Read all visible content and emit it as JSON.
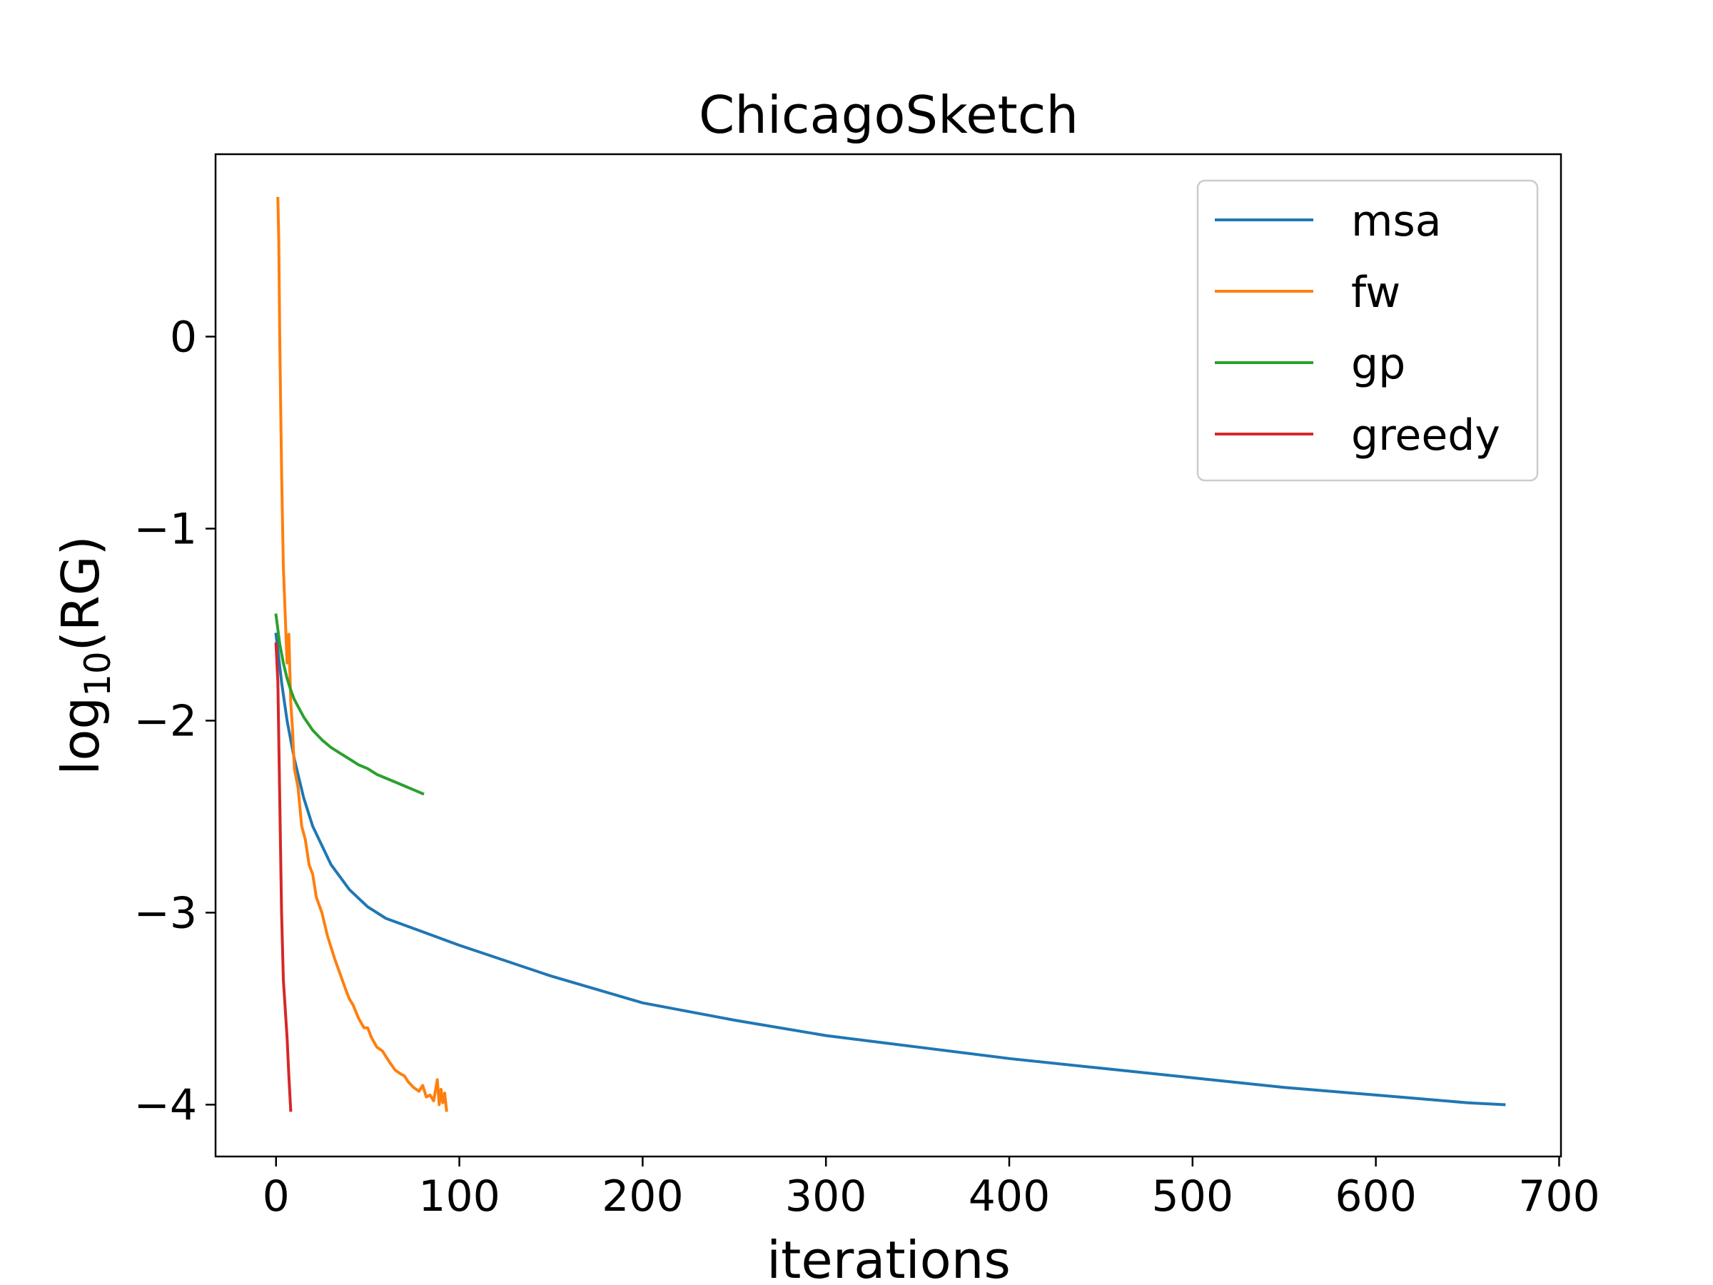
{
  "chart_data": {
    "type": "line",
    "title": "ChicagoSketch",
    "xlabel": "iterations",
    "ylabel": "log",
    "ylabel_sub": "10",
    "ylabel_suffix": "(RG)",
    "xlim": [
      -33,
      701
    ],
    "ylim": [
      -4.27,
      0.95
    ],
    "xticks": [
      0,
      100,
      200,
      300,
      400,
      500,
      600,
      700
    ],
    "xtick_labels": [
      "0",
      "100",
      "200",
      "300",
      "400",
      "500",
      "600",
      "700"
    ],
    "yticks": [
      0,
      -1,
      -2,
      -3,
      -4
    ],
    "ytick_labels": [
      "0",
      "−1",
      "−2",
      "−3",
      "−4"
    ],
    "grid": false,
    "legend_position": "top-right",
    "series": [
      {
        "name": "msa",
        "color": "#1f77b4",
        "x": [
          0,
          3,
          6,
          10,
          15,
          20,
          30,
          40,
          50,
          60,
          80,
          100,
          150,
          200,
          250,
          300,
          350,
          400,
          450,
          500,
          550,
          600,
          650,
          670
        ],
        "y": [
          -1.55,
          -1.8,
          -2.0,
          -2.2,
          -2.4,
          -2.55,
          -2.75,
          -2.88,
          -2.97,
          -3.03,
          -3.1,
          -3.17,
          -3.33,
          -3.47,
          -3.56,
          -3.64,
          -3.7,
          -3.76,
          -3.81,
          -3.86,
          -3.91,
          -3.95,
          -3.99,
          -4.0
        ]
      },
      {
        "name": "fw",
        "color": "#ff7f0e",
        "x": [
          1,
          1.5,
          2,
          3,
          4,
          5,
          6,
          7,
          8,
          9,
          10,
          12,
          14,
          16,
          18,
          20,
          22,
          25,
          28,
          30,
          32,
          35,
          38,
          40,
          42,
          45,
          48,
          50,
          52,
          55,
          58,
          60,
          62,
          65,
          68,
          70,
          72,
          75,
          78,
          80,
          82,
          84,
          86,
          88,
          89,
          90,
          91,
          92,
          93
        ],
        "y": [
          0.72,
          0.5,
          0.0,
          -0.7,
          -1.2,
          -1.45,
          -1.7,
          -1.55,
          -1.9,
          -2.05,
          -2.25,
          -2.35,
          -2.55,
          -2.62,
          -2.75,
          -2.8,
          -2.92,
          -3.0,
          -3.12,
          -3.18,
          -3.24,
          -3.32,
          -3.4,
          -3.45,
          -3.48,
          -3.55,
          -3.6,
          -3.6,
          -3.65,
          -3.7,
          -3.72,
          -3.75,
          -3.78,
          -3.82,
          -3.84,
          -3.85,
          -3.88,
          -3.91,
          -3.93,
          -3.9,
          -3.96,
          -3.95,
          -3.98,
          -3.87,
          -4.0,
          -3.92,
          -3.99,
          -3.94,
          -4.03
        ]
      },
      {
        "name": "gp",
        "color": "#2ca02c",
        "x": [
          0,
          2,
          4,
          6,
          8,
          10,
          15,
          20,
          25,
          30,
          35,
          40,
          45,
          50,
          55,
          60,
          65,
          70,
          75,
          80
        ],
        "y": [
          -1.45,
          -1.6,
          -1.7,
          -1.78,
          -1.84,
          -1.89,
          -1.98,
          -2.05,
          -2.1,
          -2.14,
          -2.17,
          -2.2,
          -2.23,
          -2.25,
          -2.28,
          -2.3,
          -2.32,
          -2.34,
          -2.36,
          -2.38
        ]
      },
      {
        "name": "greedy",
        "color": "#d62728",
        "x": [
          0,
          1,
          2,
          3,
          4,
          5,
          6,
          7,
          8
        ],
        "y": [
          -1.6,
          -1.8,
          -2.4,
          -3.0,
          -3.35,
          -3.5,
          -3.65,
          -3.85,
          -4.03
        ]
      }
    ]
  }
}
